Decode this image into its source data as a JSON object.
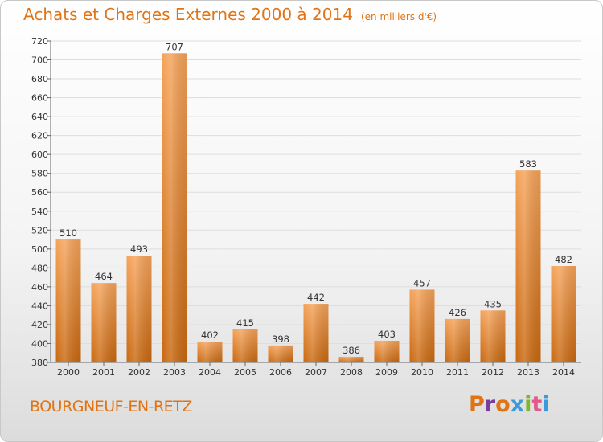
{
  "header": {
    "title": "Achats et Charges Externes 2000 à 2014",
    "subtitle": "(en milliers d'€)"
  },
  "footer": {
    "city": "BOURGNEUF-EN-RETZ",
    "logo": "Proxiti",
    "logo_colors": [
      "#e07414",
      "#7a3ca0",
      "#e07414",
      "#3b9ad9",
      "#7ab82e",
      "#e05a8c",
      "#3b9ad9"
    ]
  },
  "chart_data": {
    "type": "bar",
    "title": "Achats et Charges Externes 2000 à 2014",
    "subtitle": "(en milliers d'€)",
    "categories": [
      "2000",
      "2001",
      "2002",
      "2003",
      "2004",
      "2005",
      "2006",
      "2007",
      "2008",
      "2009",
      "2010",
      "2011",
      "2012",
      "2013",
      "2014"
    ],
    "values": [
      510,
      464,
      493,
      707,
      402,
      415,
      398,
      442,
      386,
      403,
      457,
      426,
      435,
      583,
      482
    ],
    "ylim": [
      380,
      720
    ],
    "ystep": 20,
    "grid": true,
    "bar_color": "#e8801e",
    "xlabel": "",
    "ylabel": ""
  }
}
